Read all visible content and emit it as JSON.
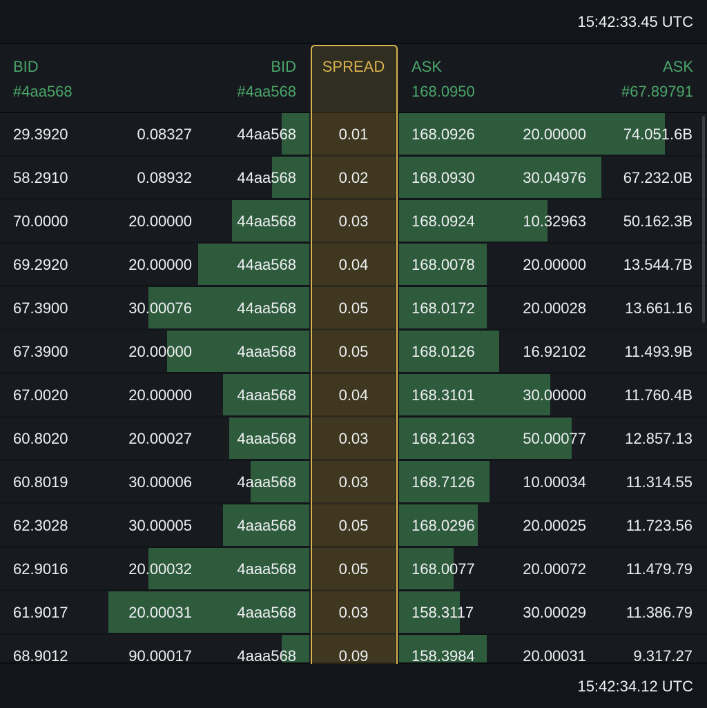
{
  "top_timestamp": "15:42:33.45 UTC",
  "bottom_timestamp": "15:42:34.12 UTC",
  "colors": {
    "accent_green": "#4aa568",
    "spread_gold": "#d9b24e",
    "bar_green": "#2f5b3d"
  },
  "header": {
    "bid_left": "BID",
    "bid_left_sub": "#4aa568",
    "bid_right": "BID",
    "bid_right_sub": "#4aa568",
    "spread": "SPREAD",
    "ask_left": "ASK",
    "ask_left_sub": "168.0950",
    "ask_right": "ASK",
    "ask_right_sub": "#67.89791"
  },
  "rows": [
    {
      "bid_price": "29.3920",
      "bid_qty": "0.08327",
      "bid_total": "44aa568",
      "spread": "0.01",
      "ask_price": "168.0926",
      "ask_qty": "20.00000",
      "ask_total": "74.051.6B",
      "bid_depth": 0.09,
      "ask_depth": 0.88
    },
    {
      "bid_price": "58.2910",
      "bid_qty": "0.08932",
      "bid_total": "44aa568",
      "spread": "0.02",
      "ask_price": "168.0930",
      "ask_qty": "30.04976",
      "ask_total": "67.232.0B",
      "bid_depth": 0.12,
      "ask_depth": 0.67
    },
    {
      "bid_price": "70.0000",
      "bid_qty": "20.00000",
      "bid_total": "44aa568",
      "spread": "0.03",
      "ask_price": "168.0924",
      "ask_qty": "10.32963",
      "ask_total": "50.162.3B",
      "bid_depth": 0.25,
      "ask_depth": 0.49
    },
    {
      "bid_price": "69.2920",
      "bid_qty": "20.00000",
      "bid_total": "44aa568",
      "spread": "0.04",
      "ask_price": "168.0078",
      "ask_qty": "20.00000",
      "ask_total": "13.544.7B",
      "bid_depth": 0.36,
      "ask_depth": 0.29
    },
    {
      "bid_price": "67.3900",
      "bid_qty": "30.00076",
      "bid_total": "44aa568",
      "spread": "0.05",
      "ask_price": "168.0172",
      "ask_qty": "20.00028",
      "ask_total": "13.661.16",
      "bid_depth": 0.52,
      "ask_depth": 0.29
    },
    {
      "bid_price": "67.3900",
      "bid_qty": "20.00000",
      "bid_total": "4aaa568",
      "spread": "0.05",
      "ask_price": "168.0126",
      "ask_qty": "16.92102",
      "ask_total": "11.493.9B",
      "bid_depth": 0.46,
      "ask_depth": 0.33
    },
    {
      "bid_price": "67.0020",
      "bid_qty": "20.00000",
      "bid_total": "4aaa568",
      "spread": "0.04",
      "ask_price": "168.3101",
      "ask_qty": "30.00000",
      "ask_total": "11.760.4B",
      "bid_depth": 0.28,
      "ask_depth": 0.5
    },
    {
      "bid_price": "60.8020",
      "bid_qty": "20.00027",
      "bid_total": "4aaa568",
      "spread": "0.03",
      "ask_price": "168.2163",
      "ask_qty": "50.00077",
      "ask_total": "12.857.13",
      "bid_depth": 0.26,
      "ask_depth": 0.57
    },
    {
      "bid_price": "60.8019",
      "bid_qty": "30.00006",
      "bid_total": "4aaa568",
      "spread": "0.03",
      "ask_price": "168.7126",
      "ask_qty": "10.00034",
      "ask_total": "11.314.55",
      "bid_depth": 0.19,
      "ask_depth": 0.3
    },
    {
      "bid_price": "62.3028",
      "bid_qty": "30.00005",
      "bid_total": "4aaa568",
      "spread": "0.05",
      "ask_price": "168.0296",
      "ask_qty": "20.00025",
      "ask_total": "11.723.56",
      "bid_depth": 0.28,
      "ask_depth": 0.26
    },
    {
      "bid_price": "62.9016",
      "bid_qty": "20.00032",
      "bid_total": "4aaa568",
      "spread": "0.05",
      "ask_price": "168.0077",
      "ask_qty": "20.00072",
      "ask_total": "11.479.79",
      "bid_depth": 0.52,
      "ask_depth": 0.18
    },
    {
      "bid_price": "61.9017",
      "bid_qty": "20.00031",
      "bid_total": "4aaa568",
      "spread": "0.03",
      "ask_price": "158.3117",
      "ask_qty": "30.00029",
      "ask_total": "11.386.79",
      "bid_depth": 0.65,
      "ask_depth": 0.2
    },
    {
      "bid_price": "68.9012",
      "bid_qty": "90.00017",
      "bid_total": "4aaa568",
      "spread": "0.09",
      "ask_price": "158.3984",
      "ask_qty": "20.00031",
      "ask_total": "9.317.27",
      "bid_depth": 0.09,
      "ask_depth": 0.29
    }
  ]
}
